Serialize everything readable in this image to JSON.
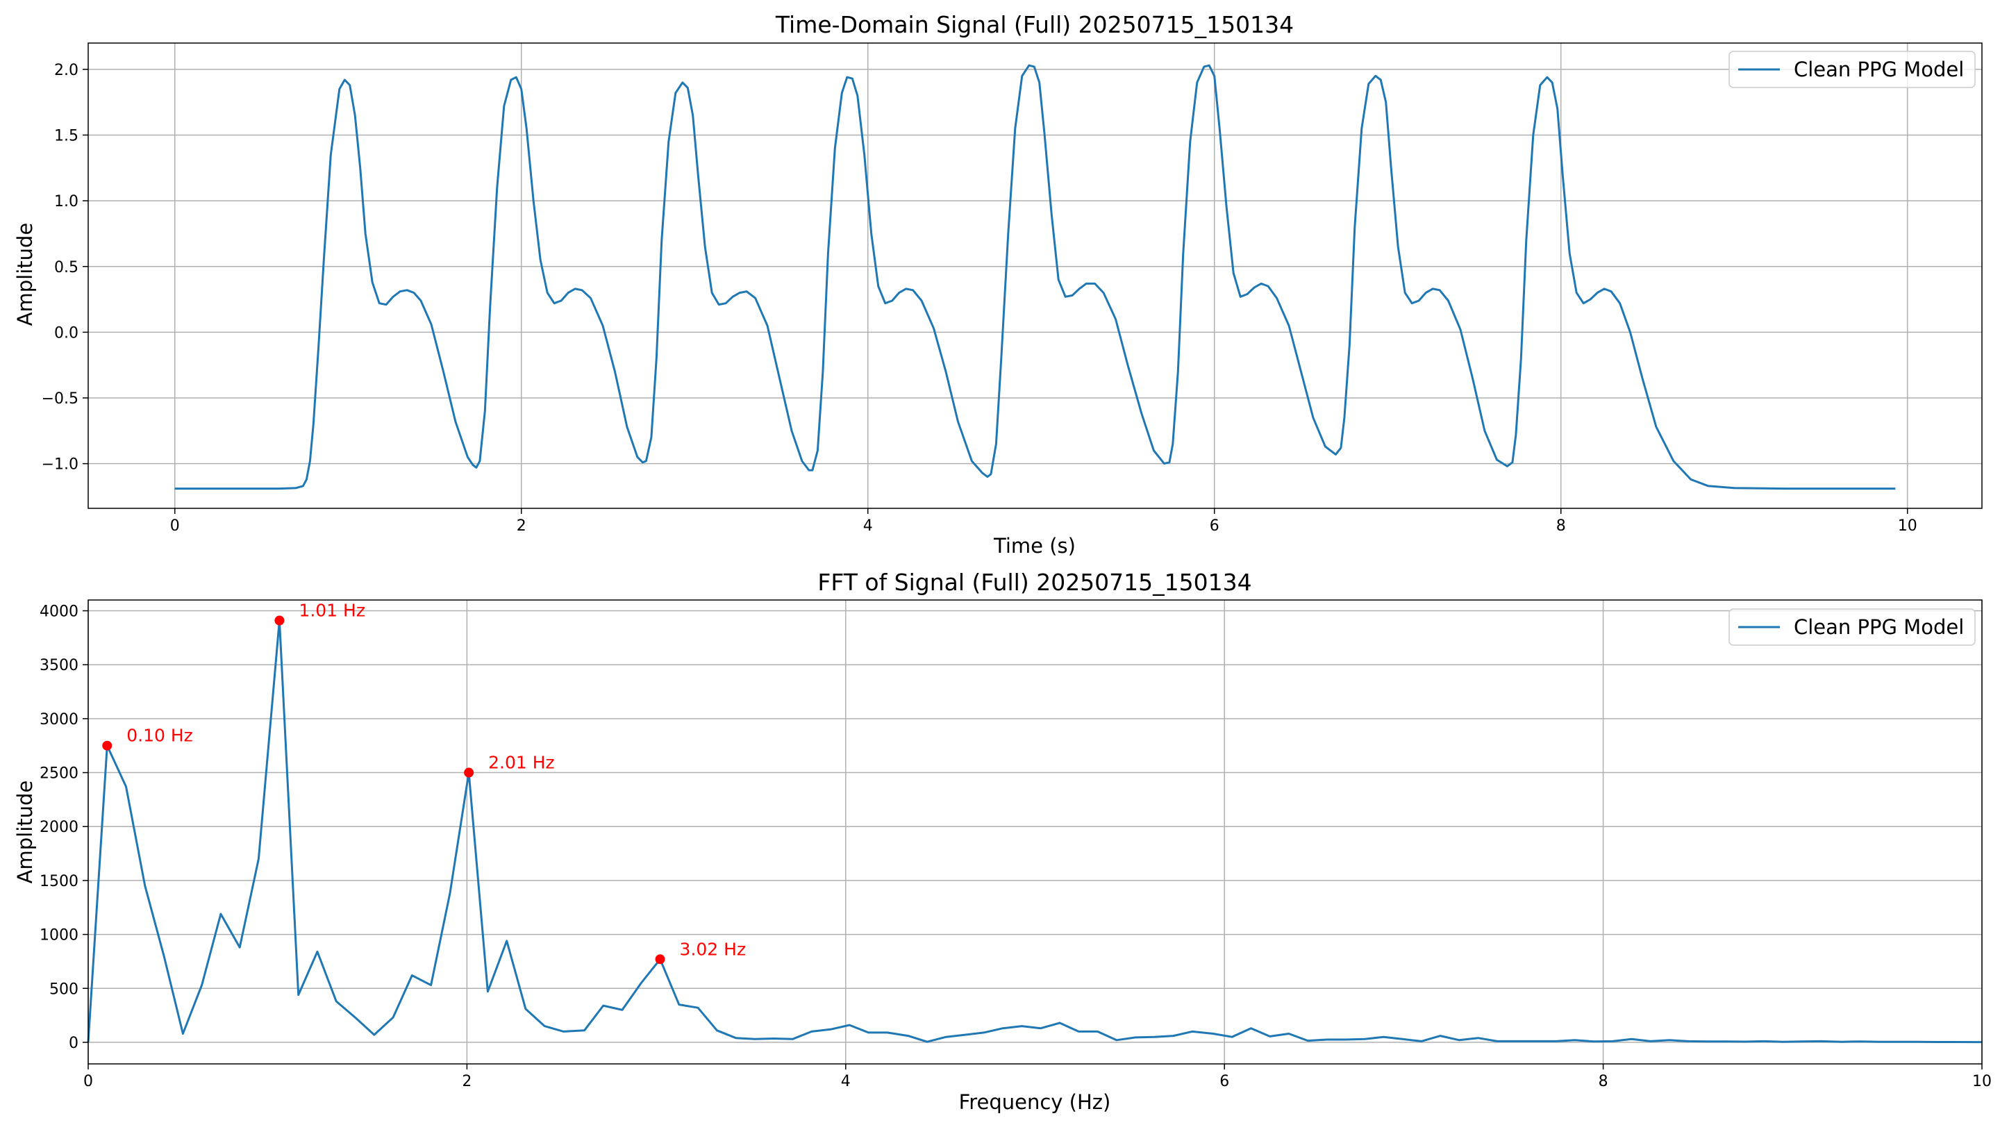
{
  "chart_data": [
    {
      "type": "line",
      "title": "Time-Domain Signal (Full) 20250715_150134",
      "xlabel": "Time (s)",
      "ylabel": "Amplitude",
      "xlim": [
        -0.5,
        10.43
      ],
      "ylim": [
        -1.34,
        2.2
      ],
      "grid": true,
      "legend_position": "top-right",
      "color": "#1f77b4",
      "xticks": [
        0,
        2,
        4,
        6,
        8,
        10
      ],
      "xtick_labels": [
        "0",
        "2",
        "4",
        "6",
        "8",
        "10"
      ],
      "yticks": [
        -1.0,
        -0.5,
        0.0,
        0.5,
        1.0,
        1.5,
        2.0
      ],
      "ytick_labels": [
        "−1.0",
        "−0.5",
        "0.0",
        "0.5",
        "1.0",
        "1.5",
        "2.0"
      ],
      "series": [
        {
          "name": "Clean PPG Model",
          "x": [
            0,
            0.3,
            0.6,
            0.7,
            0.74,
            0.76,
            0.78,
            0.8,
            0.83,
            0.86,
            0.9,
            0.95,
            0.98,
            1.01,
            1.04,
            1.07,
            1.1,
            1.14,
            1.18,
            1.22,
            1.26,
            1.3,
            1.34,
            1.38,
            1.42,
            1.48,
            1.55,
            1.62,
            1.69,
            1.72,
            1.74,
            1.76,
            1.79,
            1.82,
            1.86,
            1.9,
            1.94,
            1.97,
            2.0,
            2.03,
            2.07,
            2.11,
            2.15,
            2.19,
            2.23,
            2.27,
            2.31,
            2.35,
            2.4,
            2.47,
            2.54,
            2.61,
            2.67,
            2.7,
            2.72,
            2.75,
            2.78,
            2.81,
            2.85,
            2.89,
            2.93,
            2.96,
            2.99,
            3.02,
            3.06,
            3.1,
            3.14,
            3.18,
            3.22,
            3.26,
            3.3,
            3.35,
            3.42,
            3.49,
            3.56,
            3.62,
            3.66,
            3.68,
            3.71,
            3.74,
            3.77,
            3.81,
            3.85,
            3.88,
            3.91,
            3.94,
            3.98,
            4.02,
            4.06,
            4.1,
            4.14,
            4.18,
            4.22,
            4.26,
            4.31,
            4.38,
            4.45,
            4.52,
            4.6,
            4.66,
            4.69,
            4.71,
            4.74,
            4.77,
            4.81,
            4.85,
            4.89,
            4.93,
            4.96,
            4.99,
            5.02,
            5.06,
            5.1,
            5.14,
            5.18,
            5.22,
            5.26,
            5.31,
            5.36,
            5.43,
            5.5,
            5.58,
            5.65,
            5.71,
            5.74,
            5.76,
            5.79,
            5.82,
            5.86,
            5.9,
            5.94,
            5.97,
            6.0,
            6.03,
            6.07,
            6.11,
            6.15,
            6.19,
            6.23,
            6.27,
            6.31,
            6.36,
            6.43,
            6.5,
            6.57,
            6.64,
            6.7,
            6.73,
            6.75,
            6.78,
            6.81,
            6.85,
            6.89,
            6.93,
            6.96,
            6.99,
            7.02,
            7.06,
            7.1,
            7.14,
            7.18,
            7.22,
            7.26,
            7.3,
            7.35,
            7.42,
            7.49,
            7.56,
            7.63,
            7.69,
            7.72,
            7.74,
            7.77,
            7.8,
            7.84,
            7.88,
            7.92,
            7.95,
            7.98,
            8.01,
            8.05,
            8.09,
            8.13,
            8.17,
            8.21,
            8.25,
            8.29,
            8.34,
            8.4,
            8.47,
            8.55,
            8.65,
            8.75,
            8.85,
            9.0,
            9.3,
            9.6,
            9.93
          ],
          "y": [
            -1.19,
            -1.19,
            -1.19,
            -1.185,
            -1.17,
            -1.12,
            -0.98,
            -0.7,
            -0.1,
            0.55,
            1.35,
            1.85,
            1.92,
            1.88,
            1.65,
            1.25,
            0.75,
            0.38,
            0.22,
            0.21,
            0.27,
            0.31,
            0.32,
            0.3,
            0.24,
            0.06,
            -0.3,
            -0.68,
            -0.95,
            -1.01,
            -1.03,
            -0.98,
            -0.6,
            0.2,
            1.1,
            1.72,
            1.92,
            1.94,
            1.85,
            1.55,
            1.0,
            0.55,
            0.3,
            0.22,
            0.24,
            0.3,
            0.33,
            0.32,
            0.26,
            0.05,
            -0.3,
            -0.72,
            -0.95,
            -0.99,
            -0.98,
            -0.8,
            -0.2,
            0.7,
            1.45,
            1.82,
            1.9,
            1.86,
            1.65,
            1.2,
            0.65,
            0.3,
            0.21,
            0.22,
            0.27,
            0.3,
            0.31,
            0.26,
            0.05,
            -0.35,
            -0.75,
            -0.98,
            -1.05,
            -1.05,
            -0.9,
            -0.3,
            0.6,
            1.4,
            1.82,
            1.94,
            1.93,
            1.8,
            1.35,
            0.75,
            0.35,
            0.22,
            0.24,
            0.3,
            0.33,
            0.32,
            0.24,
            0.03,
            -0.3,
            -0.68,
            -0.98,
            -1.07,
            -1.1,
            -1.08,
            -0.85,
            -0.2,
            0.75,
            1.55,
            1.95,
            2.03,
            2.02,
            1.9,
            1.5,
            0.9,
            0.4,
            0.27,
            0.28,
            0.33,
            0.37,
            0.37,
            0.3,
            0.1,
            -0.25,
            -0.62,
            -0.9,
            -1.0,
            -0.99,
            -0.85,
            -0.3,
            0.6,
            1.45,
            1.9,
            2.02,
            2.03,
            1.95,
            1.55,
            0.95,
            0.45,
            0.27,
            0.29,
            0.34,
            0.37,
            0.35,
            0.26,
            0.05,
            -0.3,
            -0.65,
            -0.87,
            -0.93,
            -0.88,
            -0.65,
            -0.1,
            0.8,
            1.55,
            1.89,
            1.95,
            1.92,
            1.75,
            1.25,
            0.65,
            0.3,
            0.22,
            0.24,
            0.3,
            0.33,
            0.32,
            0.24,
            0.02,
            -0.35,
            -0.75,
            -0.97,
            -1.02,
            -0.99,
            -0.78,
            -0.2,
            0.7,
            1.5,
            1.88,
            1.94,
            1.9,
            1.7,
            1.2,
            0.6,
            0.3,
            0.22,
            0.25,
            0.3,
            0.33,
            0.31,
            0.22,
            0.0,
            -0.35,
            -0.72,
            -0.98,
            -1.12,
            -1.17,
            -1.185,
            -1.19,
            -1.19,
            -1.19
          ]
        }
      ]
    },
    {
      "type": "line",
      "title": "FFT of Signal (Full) 20250715_150134",
      "xlabel": "Frequency (Hz)",
      "ylabel": "Amplitude",
      "xlim": [
        0,
        10
      ],
      "ylim": [
        -200,
        4100
      ],
      "grid": true,
      "legend_position": "top-right",
      "color": "#1f77b4",
      "xticks": [
        0,
        2,
        4,
        6,
        8,
        10
      ],
      "xtick_labels": [
        "0",
        "2",
        "4",
        "6",
        "8",
        "10"
      ],
      "yticks": [
        0,
        500,
        1000,
        1500,
        2000,
        2500,
        3000,
        3500,
        4000
      ],
      "ytick_labels": [
        "0",
        "500",
        "1000",
        "1500",
        "2000",
        "2500",
        "3000",
        "3500",
        "4000"
      ],
      "series": [
        {
          "name": "Clean PPG Model",
          "x": [
            0.0,
            0.1,
            0.2,
            0.3,
            0.4,
            0.5,
            0.6,
            0.7,
            0.8,
            0.9,
            1.01,
            1.11,
            1.21,
            1.31,
            1.41,
            1.51,
            1.61,
            1.71,
            1.81,
            1.91,
            2.01,
            2.11,
            2.21,
            2.31,
            2.41,
            2.51,
            2.62,
            2.72,
            2.82,
            2.92,
            3.02,
            3.12,
            3.22,
            3.32,
            3.42,
            3.52,
            3.62,
            3.72,
            3.82,
            3.92,
            4.02,
            4.12,
            4.22,
            4.33,
            4.43,
            4.53,
            4.63,
            4.73,
            4.83,
            4.93,
            5.03,
            5.13,
            5.23,
            5.33,
            5.43,
            5.53,
            5.63,
            5.73,
            5.83,
            5.94,
            6.04,
            6.14,
            6.24,
            6.34,
            6.44,
            6.54,
            6.64,
            6.74,
            6.84,
            6.94,
            7.04,
            7.14,
            7.24,
            7.34,
            7.44,
            7.55,
            7.65,
            7.75,
            7.85,
            7.95,
            8.05,
            8.15,
            8.25,
            8.35,
            8.45,
            8.55,
            8.65,
            8.75,
            8.85,
            8.95,
            9.05,
            9.15,
            9.26,
            9.36,
            9.46,
            9.56,
            9.66,
            9.76,
            9.86,
            9.96,
            10.0
          ],
          "y": [
            0,
            2750,
            2370,
            1450,
            800,
            80,
            530,
            1190,
            880,
            1700,
            3910,
            440,
            840,
            380,
            230,
            70,
            230,
            620,
            530,
            1380,
            2500,
            470,
            940,
            310,
            150,
            100,
            110,
            340,
            300,
            550,
            770,
            350,
            320,
            110,
            40,
            30,
            35,
            30,
            100,
            120,
            160,
            90,
            90,
            60,
            5,
            50,
            70,
            90,
            130,
            150,
            130,
            180,
            100,
            100,
            20,
            45,
            50,
            60,
            100,
            80,
            50,
            130,
            55,
            80,
            15,
            25,
            25,
            30,
            50,
            30,
            10,
            60,
            20,
            40,
            10,
            10,
            10,
            10,
            20,
            8,
            10,
            30,
            10,
            20,
            10,
            8,
            8,
            6,
            10,
            5,
            8,
            10,
            5,
            8,
            5,
            4,
            4,
            3,
            3,
            2,
            2
          ]
        }
      ],
      "peaks": [
        {
          "x": 0.1,
          "y": 2750,
          "label": "0.10 Hz"
        },
        {
          "x": 1.01,
          "y": 3910,
          "label": "1.01 Hz"
        },
        {
          "x": 2.01,
          "y": 2500,
          "label": "2.01 Hz"
        },
        {
          "x": 3.02,
          "y": 770,
          "label": "3.02 Hz"
        }
      ],
      "peak_color": "#ff0000"
    }
  ]
}
